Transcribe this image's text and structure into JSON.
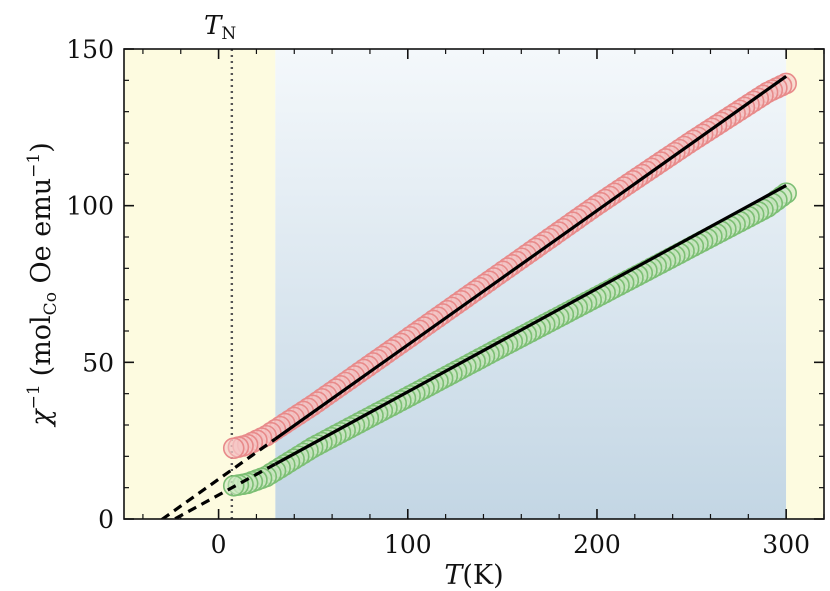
{
  "chart_data": {
    "type": "scatter",
    "title": "",
    "xlabel": {
      "main": "T",
      "unit": "(K)"
    },
    "ylabel": {
      "chi": "χ",
      "exp": "−1",
      "open": "(mol",
      "sub": "Co",
      "rest": " Oe emu",
      "exp2": "−1",
      "close": ")"
    },
    "xlim": [
      -50,
      320
    ],
    "ylim": [
      0,
      150
    ],
    "xticks": [
      "0",
      "100",
      "200",
      "300"
    ],
    "yticks": [
      "0",
      "50",
      "100",
      "150"
    ],
    "annotation": {
      "label": "T",
      "sub": "N",
      "x": 7
    },
    "shaded_regions": [
      {
        "name": "low-temperature region",
        "x0": -50,
        "x1": 30,
        "color": "#fdfbe0"
      },
      {
        "name": "fit region",
        "x0": 30,
        "x1": 300,
        "color_top": "#f3f7fb",
        "color_bottom": "#c4d7e5"
      },
      {
        "name": "high-temperature region",
        "x0": 300,
        "x1": 320,
        "color": "#fdfbe0"
      }
    ],
    "series": [
      {
        "name": "upper series",
        "color": "#e88a8a",
        "fill": "#f4c2c2",
        "x_start": 8,
        "x_end": 300,
        "n": 120,
        "points": [
          [
            8,
            22.6
          ],
          [
            15,
            23.6
          ],
          [
            25,
            26.5
          ],
          [
            50,
            36.4
          ],
          [
            100,
            57.6
          ],
          [
            150,
            78.9
          ],
          [
            200,
            100.2
          ],
          [
            250,
            120.5
          ],
          [
            290,
            136.1
          ],
          [
            300,
            139.0
          ]
        ],
        "fit": {
          "slope": 0.4286,
          "intercept": 12.7,
          "x0": 30,
          "x1": 300
        },
        "extrapolation": {
          "x0": -30,
          "x1": 30
        }
      },
      {
        "name": "lower series",
        "color": "#7cbf74",
        "fill": "#c8e6c0",
        "x_start": 8,
        "x_end": 300,
        "n": 120,
        "points": [
          [
            8,
            10.6
          ],
          [
            15,
            11.3
          ],
          [
            25,
            13.5
          ],
          [
            50,
            22.9
          ],
          [
            100,
            38.9
          ],
          [
            150,
            55.0
          ],
          [
            200,
            70.9
          ],
          [
            250,
            86.8
          ],
          [
            290,
            99.5
          ],
          [
            300,
            104.0
          ]
        ],
        "fit": {
          "slope": 0.3293,
          "intercept": 7.66,
          "x0": 30,
          "x1": 300
        },
        "extrapolation": {
          "x0": -23,
          "x1": 30
        }
      }
    ]
  }
}
